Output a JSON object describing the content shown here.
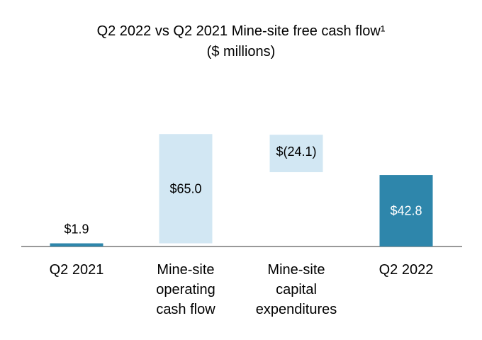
{
  "chart_data": {
    "type": "waterfall",
    "title": "Q2 2022 vs Q2 2021 Mine-site free cash flow¹",
    "subtitle": "($ millions)",
    "categories": [
      [
        "Q2 2021"
      ],
      [
        "Mine-site",
        "operating",
        "cash flow"
      ],
      [
        "Mine-site",
        "capital",
        "expenditures"
      ],
      [
        "Q2 2022"
      ]
    ],
    "values": [
      1.9,
      65.0,
      -24.1,
      42.8
    ],
    "value_labels": [
      "$1.9",
      "$65.0",
      "$(24.1)",
      "$42.8"
    ],
    "kinds": [
      "total",
      "delta",
      "delta",
      "total"
    ],
    "colors": {
      "total": "#2e86ab",
      "delta": "#d2e7f3",
      "axis": "#999999",
      "label_on_dark": "#ffffff",
      "label_default": "#000000"
    },
    "ylim": [
      0,
      67
    ],
    "grid": false
  }
}
